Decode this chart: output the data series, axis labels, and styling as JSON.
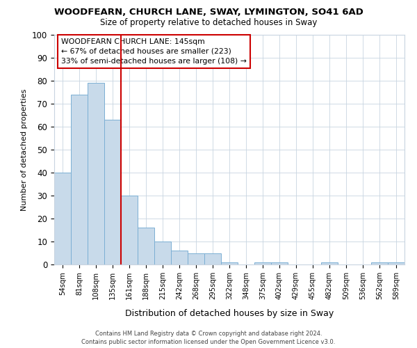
{
  "title1": "WOODFEARN, CHURCH LANE, SWAY, LYMINGTON, SO41 6AD",
  "title2": "Size of property relative to detached houses in Sway",
  "xlabel": "Distribution of detached houses by size in Sway",
  "ylabel": "Number of detached properties",
  "footnote1": "Contains HM Land Registry data © Crown copyright and database right 2024.",
  "footnote2": "Contains public sector information licensed under the Open Government Licence v3.0.",
  "bins": [
    "54sqm",
    "81sqm",
    "108sqm",
    "135sqm",
    "161sqm",
    "188sqm",
    "215sqm",
    "242sqm",
    "268sqm",
    "295sqm",
    "322sqm",
    "348sqm",
    "375sqm",
    "402sqm",
    "429sqm",
    "455sqm",
    "482sqm",
    "509sqm",
    "536sqm",
    "562sqm",
    "589sqm"
  ],
  "values": [
    40,
    74,
    79,
    63,
    30,
    16,
    10,
    6,
    5,
    5,
    1,
    0,
    1,
    1,
    0,
    0,
    1,
    0,
    0,
    1,
    1
  ],
  "bar_color": "#c8daea",
  "bar_edge_color": "#7bafd4",
  "vline_color": "#cc0000",
  "vline_pos": 3.5,
  "annotation_line1": "WOODFEARN CHURCH LANE: 145sqm",
  "annotation_line2": "← 67% of detached houses are smaller (223)",
  "annotation_line3": "33% of semi-detached houses are larger (108) →",
  "annotation_box_color": "white",
  "annotation_box_edge": "#cc0000",
  "ylim": [
    0,
    100
  ],
  "yticks": [
    0,
    10,
    20,
    30,
    40,
    50,
    60,
    70,
    80,
    90,
    100
  ],
  "background_color": "white",
  "grid_color": "#c8d4e0"
}
